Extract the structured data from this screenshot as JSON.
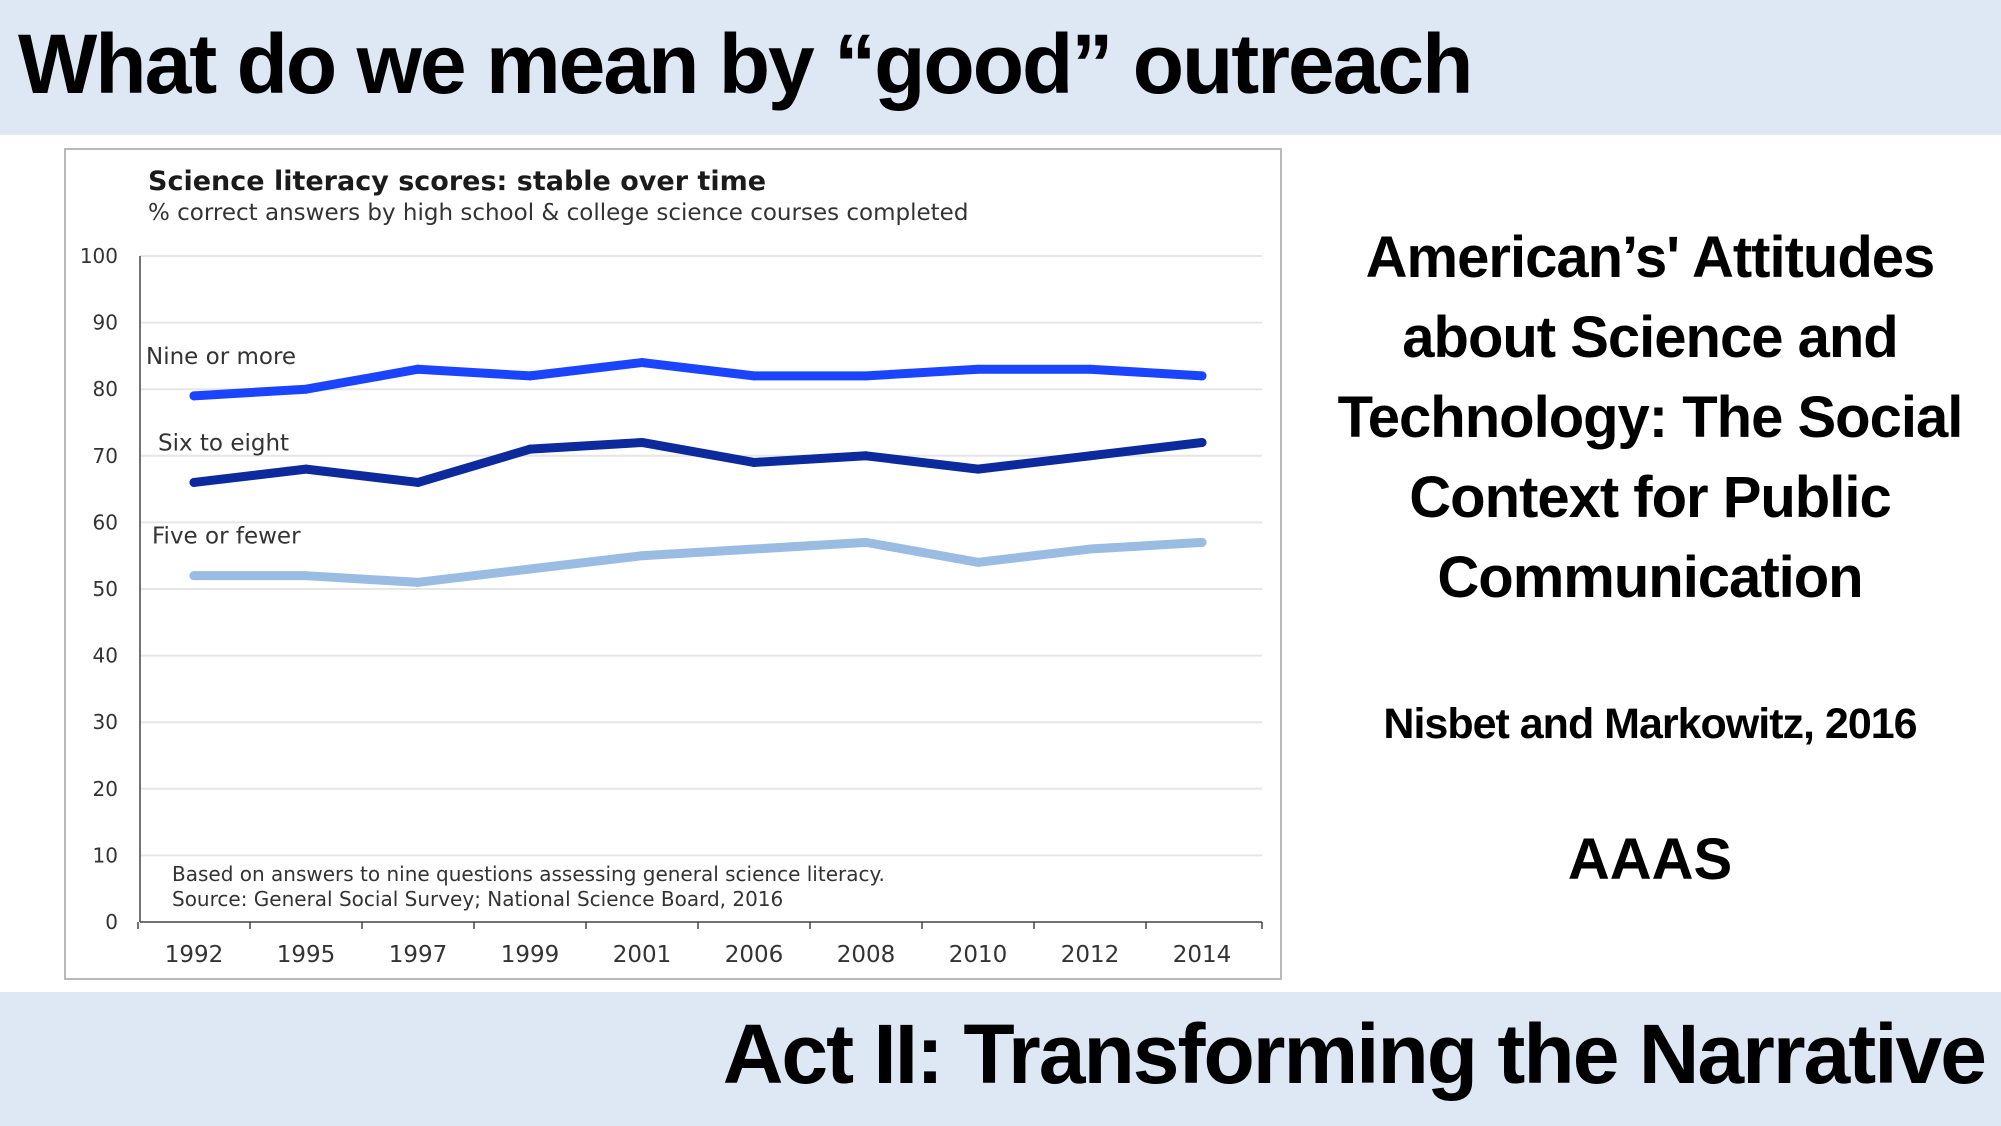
{
  "slide": {
    "title": "What do we mean by “good” outreach",
    "footer_title": "Act II: Transforming the Narrative"
  },
  "reference": {
    "title": "American’s' Attitudes about Science and Technology: The Social Context for Public Communication",
    "authors": "Nisbet and Markowitz, 2016",
    "publisher": "AAAS"
  },
  "colors": {
    "band_background": "#dde8f4",
    "series": [
      "#1b44ff",
      "#0d2a9c",
      "#9bbce2"
    ]
  },
  "chart_data": {
    "type": "line",
    "title": "Science literacy scores: stable over time",
    "subtitle": "% correct answers by high school & college science courses completed",
    "xlabel": "",
    "ylabel": "",
    "categories": [
      "1992",
      "1995",
      "1997",
      "1999",
      "2001",
      "2006",
      "2008",
      "2010",
      "2012",
      "2014"
    ],
    "ylim": [
      0,
      100
    ],
    "yticks": [
      0,
      10,
      20,
      30,
      40,
      50,
      60,
      70,
      80,
      90,
      100
    ],
    "grid": true,
    "legend": "inline labels above each line",
    "series": [
      {
        "name": "Nine or more",
        "values": [
          79,
          80,
          83,
          82,
          84,
          82,
          82,
          83,
          83,
          82
        ]
      },
      {
        "name": "Six to eight",
        "values": [
          66,
          68,
          66,
          71,
          72,
          69,
          70,
          68,
          70,
          72
        ]
      },
      {
        "name": "Five or fewer",
        "values": [
          52,
          52,
          51,
          53,
          55,
          56,
          57,
          54,
          56,
          57
        ]
      }
    ],
    "notes": [
      "Based on answers to nine questions assessing general science literacy.",
      "Source: General Social Survey; National Science Board, 2016"
    ]
  }
}
